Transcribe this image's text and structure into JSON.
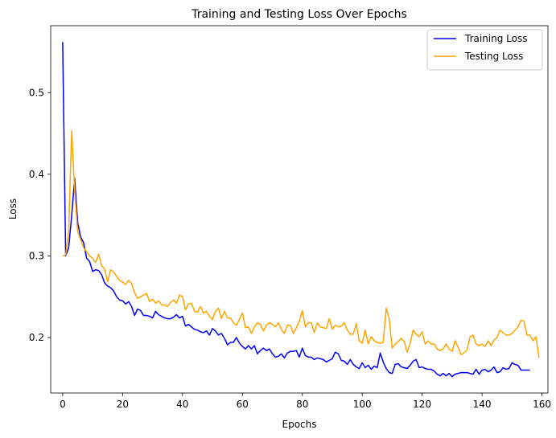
{
  "chart_data": {
    "type": "line",
    "title": "Training and Testing Loss Over Epochs",
    "xlabel": "Epochs",
    "ylabel": "Loss",
    "xlim": [
      -4,
      162
    ],
    "ylim": [
      0.132,
      0.582
    ],
    "xticks": [
      0,
      20,
      40,
      60,
      80,
      100,
      120,
      140,
      160
    ],
    "yticks": [
      0.2,
      0.3,
      0.4,
      0.5
    ],
    "grid": false,
    "legend": "top-right",
    "series": [
      {
        "name": "Training Loss",
        "color": "#0000ff",
        "values": [
          0.562,
          0.3,
          0.31,
          0.349,
          0.395,
          0.341,
          0.323,
          0.316,
          0.297,
          0.293,
          0.281,
          0.283,
          0.282,
          0.277,
          0.267,
          0.263,
          0.261,
          0.257,
          0.25,
          0.246,
          0.245,
          0.241,
          0.244,
          0.238,
          0.227,
          0.235,
          0.233,
          0.227,
          0.227,
          0.226,
          0.224,
          0.232,
          0.228,
          0.226,
          0.224,
          0.223,
          0.223,
          0.225,
          0.228,
          0.224,
          0.226,
          0.214,
          0.216,
          0.213,
          0.21,
          0.209,
          0.207,
          0.206,
          0.208,
          0.203,
          0.211,
          0.208,
          0.203,
          0.205,
          0.199,
          0.191,
          0.194,
          0.194,
          0.2,
          0.193,
          0.189,
          0.186,
          0.19,
          0.186,
          0.19,
          0.18,
          0.184,
          0.187,
          0.184,
          0.186,
          0.18,
          0.176,
          0.177,
          0.18,
          0.175,
          0.181,
          0.183,
          0.183,
          0.184,
          0.176,
          0.187,
          0.178,
          0.176,
          0.176,
          0.173,
          0.175,
          0.174,
          0.173,
          0.17,
          0.172,
          0.174,
          0.182,
          0.18,
          0.172,
          0.171,
          0.167,
          0.173,
          0.167,
          0.164,
          0.162,
          0.169,
          0.163,
          0.166,
          0.161,
          0.165,
          0.163,
          0.181,
          0.17,
          0.162,
          0.157,
          0.156,
          0.167,
          0.168,
          0.164,
          0.163,
          0.162,
          0.166,
          0.171,
          0.173,
          0.163,
          0.164,
          0.162,
          0.161,
          0.161,
          0.159,
          0.155,
          0.153,
          0.156,
          0.153,
          0.156,
          0.152,
          0.155,
          0.156,
          0.157,
          0.157,
          0.157,
          0.156,
          0.155,
          0.161,
          0.155,
          0.16,
          0.161,
          0.158,
          0.16,
          0.164,
          0.157,
          0.158,
          0.163,
          0.161,
          0.162,
          0.169,
          0.167,
          0.166,
          0.16,
          0.16,
          0.16,
          0.16
        ]
      },
      {
        "name": "Testing Loss",
        "color": "#ffa500",
        "values": [
          0.3,
          0.301,
          0.33,
          0.453,
          0.38,
          0.33,
          0.32,
          0.31,
          0.305,
          0.3,
          0.297,
          0.292,
          0.302,
          0.288,
          0.284,
          0.268,
          0.283,
          0.28,
          0.275,
          0.27,
          0.268,
          0.265,
          0.27,
          0.266,
          0.255,
          0.248,
          0.25,
          0.252,
          0.254,
          0.244,
          0.247,
          0.242,
          0.245,
          0.24,
          0.24,
          0.238,
          0.243,
          0.246,
          0.242,
          0.252,
          0.25,
          0.234,
          0.241,
          0.242,
          0.232,
          0.231,
          0.238,
          0.23,
          0.232,
          0.226,
          0.222,
          0.232,
          0.236,
          0.223,
          0.232,
          0.224,
          0.224,
          0.218,
          0.215,
          0.222,
          0.23,
          0.212,
          0.213,
          0.205,
          0.213,
          0.218,
          0.216,
          0.208,
          0.215,
          0.218,
          0.216,
          0.213,
          0.218,
          0.21,
          0.205,
          0.215,
          0.215,
          0.205,
          0.212,
          0.22,
          0.233,
          0.213,
          0.218,
          0.218,
          0.206,
          0.218,
          0.213,
          0.212,
          0.211,
          0.223,
          0.21,
          0.215,
          0.213,
          0.214,
          0.218,
          0.209,
          0.204,
          0.204,
          0.217,
          0.196,
          0.193,
          0.209,
          0.192,
          0.201,
          0.196,
          0.194,
          0.193,
          0.194,
          0.236,
          0.223,
          0.187,
          0.192,
          0.195,
          0.199,
          0.195,
          0.182,
          0.193,
          0.209,
          0.204,
          0.201,
          0.207,
          0.192,
          0.196,
          0.192,
          0.192,
          0.186,
          0.184,
          0.186,
          0.192,
          0.186,
          0.183,
          0.196,
          0.188,
          0.179,
          0.181,
          0.185,
          0.201,
          0.203,
          0.192,
          0.19,
          0.192,
          0.189,
          0.196,
          0.19,
          0.197,
          0.2,
          0.209,
          0.206,
          0.203,
          0.203,
          0.205,
          0.209,
          0.213,
          0.221,
          0.22,
          0.203,
          0.203,
          0.196,
          0.201,
          0.175
        ]
      }
    ]
  }
}
